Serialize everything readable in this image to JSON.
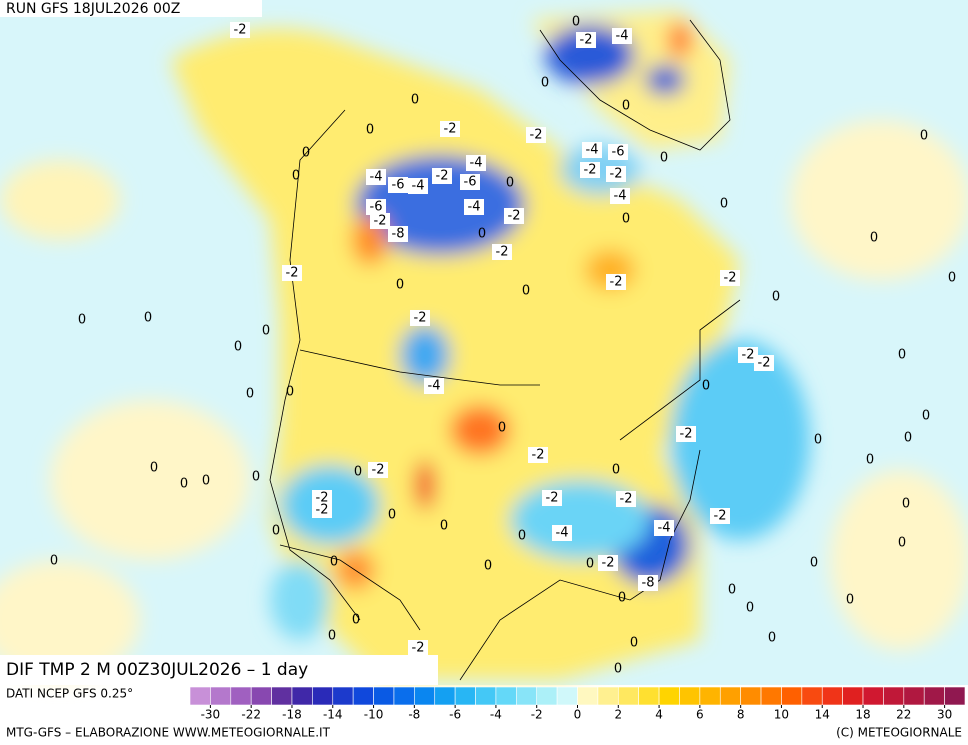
{
  "header": {
    "run": "RUN GFS 18JUL2026 00Z"
  },
  "map": {
    "title": "DIF TMP 2 M 00Z30JUL2026 – 1 day",
    "contour_labels": [
      -2,
      0,
      -2,
      -4,
      0,
      0,
      0,
      -2,
      -2,
      0,
      0,
      0,
      0,
      -4,
      -6,
      0,
      -4,
      -6,
      -4,
      -2,
      -4,
      -6,
      0,
      -2,
      -2,
      -4,
      -6,
      -2,
      -8,
      -4,
      -2,
      0,
      0,
      0,
      0,
      -2,
      -2,
      -2,
      -2,
      0,
      0,
      0,
      0,
      0,
      0,
      -2,
      0,
      0,
      -2,
      -2,
      0,
      -4,
      0,
      0,
      0,
      0,
      0,
      -2,
      0,
      0,
      -2,
      0,
      0,
      -2,
      0,
      0,
      0,
      0,
      0,
      -2,
      -2,
      -2,
      -2,
      0,
      0,
      -2,
      0,
      -4,
      -4,
      0,
      0,
      0,
      0,
      0,
      -2,
      0,
      0,
      0,
      -8,
      0,
      0,
      0,
      0,
      0,
      -2,
      0,
      0,
      0,
      0
    ]
  },
  "legend": {
    "source": "DATI NCEP GFS 0.25°",
    "colors": [
      "#c890d8",
      "#b478cc",
      "#a060c0",
      "#8848b0",
      "#6030a0",
      "#4028a8",
      "#2a2ab8",
      "#1c3acc",
      "#1048dc",
      "#0a5ae4",
      "#0a6eec",
      "#0a86f0",
      "#14a0f2",
      "#28b6f4",
      "#44c8f6",
      "#64d8f8",
      "#88e4f8",
      "#acf0f8",
      "#d0f8fa",
      "#fff8c0",
      "#fff090",
      "#ffe860",
      "#ffe030",
      "#ffd400",
      "#ffc400",
      "#ffb400",
      "#ffa000",
      "#ff8c00",
      "#ff7800",
      "#ff6000",
      "#f84a10",
      "#f03418",
      "#e02020",
      "#d01830",
      "#c01838",
      "#b01840",
      "#a01848",
      "#901850"
    ],
    "ticks": [
      -30,
      -22,
      -18,
      -14,
      -10,
      -8,
      -6,
      -4,
      -2,
      0,
      2,
      4,
      6,
      8,
      10,
      14,
      18,
      22,
      30
    ]
  },
  "footer": {
    "credit": "MTG-GFS – ELABORAZIONE WWW.METEOGIORNALE.IT",
    "copyright": "(C) METEOGIORNALE"
  }
}
